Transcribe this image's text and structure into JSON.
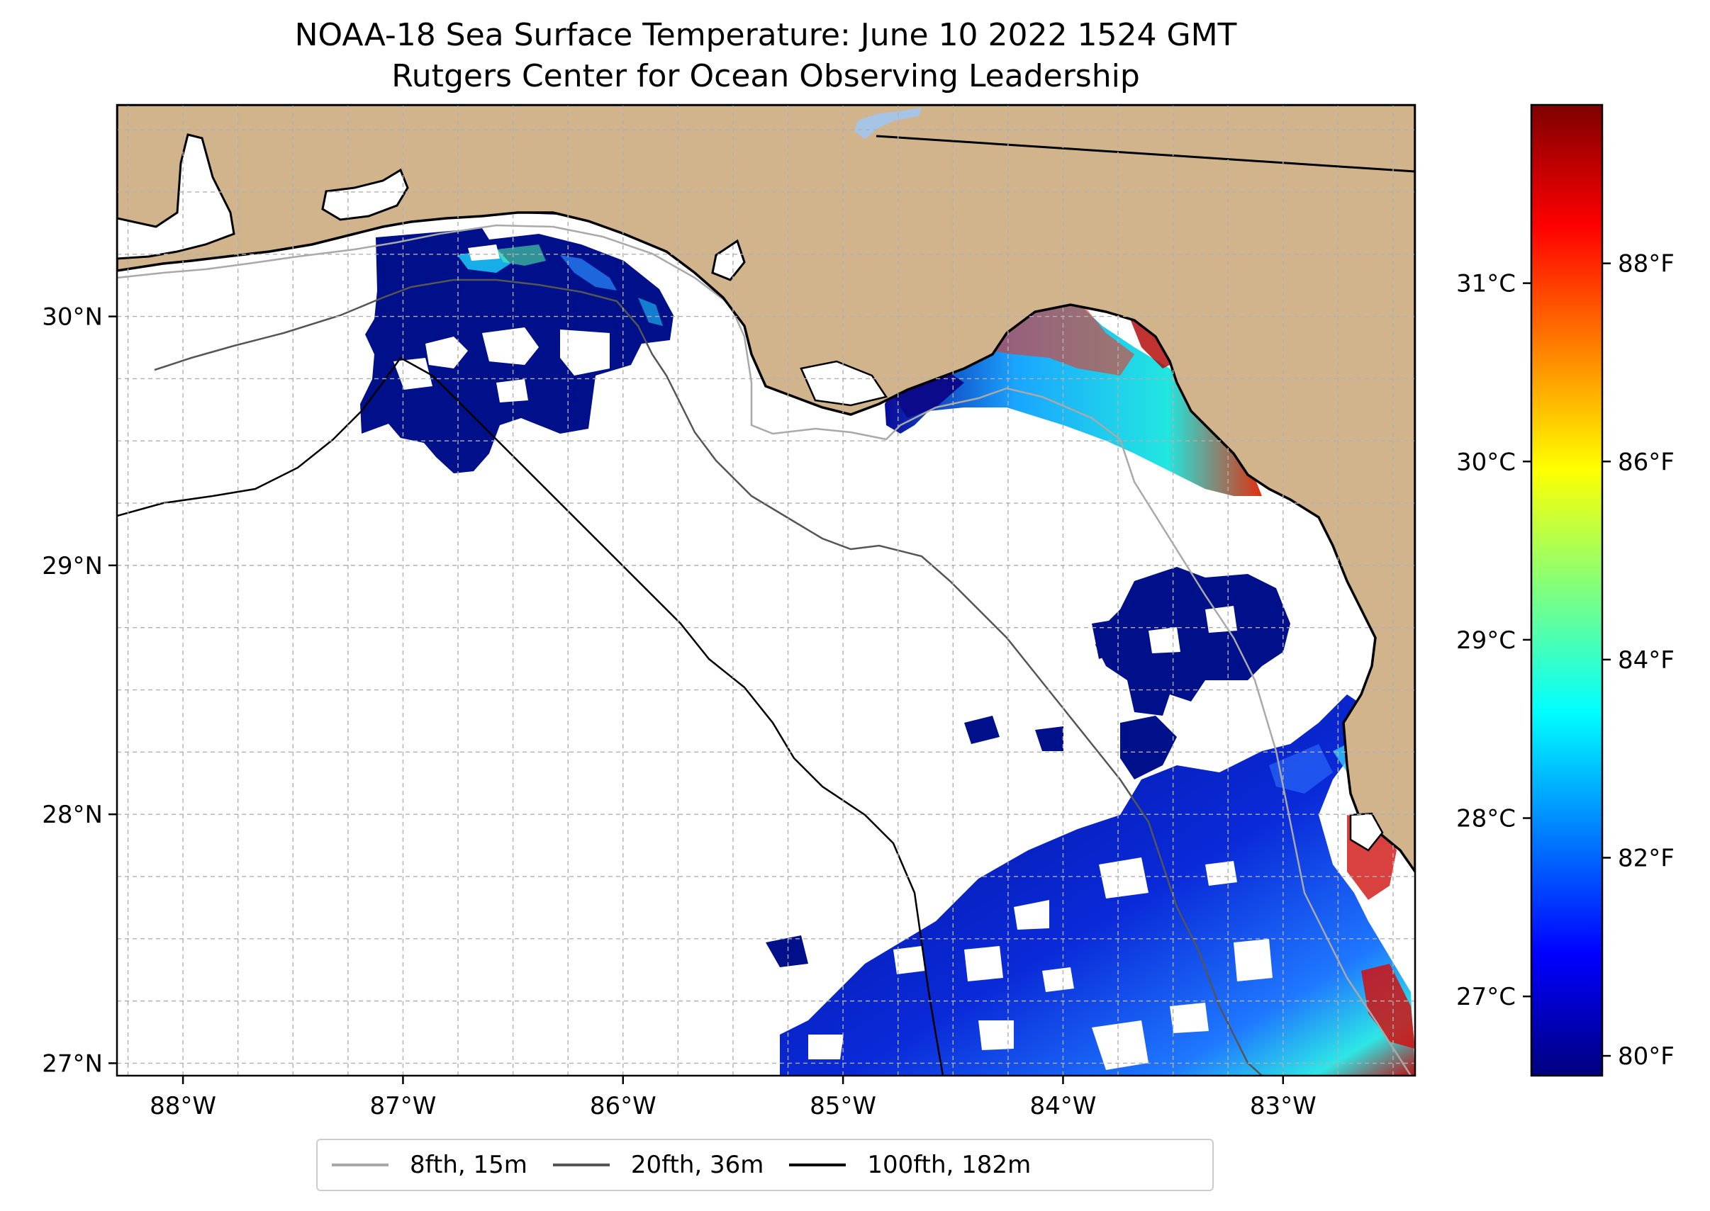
{
  "title": {
    "line1": "NOAA-18 Sea Surface Temperature: June 10 2022 1524 GMT",
    "line2": "Rutgers Center for Ocean Observing Leadership"
  },
  "map": {
    "lon_range": [
      -88.3,
      -82.4
    ],
    "lat_range": [
      26.95,
      30.85
    ],
    "lon_ticks": [
      {
        "value": -88,
        "label": "88°W"
      },
      {
        "value": -87,
        "label": "87°W"
      },
      {
        "value": -86,
        "label": "86°W"
      },
      {
        "value": -85,
        "label": "85°W"
      },
      {
        "value": -84,
        "label": "84°W"
      },
      {
        "value": -83,
        "label": "83°W"
      }
    ],
    "lat_ticks": [
      {
        "value": 27,
        "label": "27°N"
      },
      {
        "value": 28,
        "label": "28°N"
      },
      {
        "value": 29,
        "label": "29°N"
      },
      {
        "value": 30,
        "label": "30°N"
      }
    ],
    "colors": {
      "land": "#d2b48c",
      "lake": "#a6c4e6",
      "coast": "#000000",
      "grid": "#b0b0b0"
    }
  },
  "colorbar": {
    "celsius_ticks": [
      {
        "value": 27,
        "label": "27°C"
      },
      {
        "value": 28,
        "label": "28°C"
      },
      {
        "value": 29,
        "label": "29°C"
      },
      {
        "value": 30,
        "label": "30°C"
      },
      {
        "value": 31,
        "label": "31°C"
      }
    ],
    "fahrenheit_ticks": [
      {
        "value": 80,
        "label": "80°F"
      },
      {
        "value": 82,
        "label": "82°F"
      },
      {
        "value": 84,
        "label": "84°F"
      },
      {
        "value": 86,
        "label": "86°F"
      },
      {
        "value": 88,
        "label": "88°F"
      }
    ],
    "range_f": [
      79.8,
      89.6
    ],
    "colormap": "jet"
  },
  "legend": {
    "items": [
      {
        "label": "8fth, 15m",
        "color": "#a9a9a9"
      },
      {
        "label": "20fth, 36m",
        "color": "#555555"
      },
      {
        "label": "100fth, 182m",
        "color": "#000000"
      }
    ]
  }
}
